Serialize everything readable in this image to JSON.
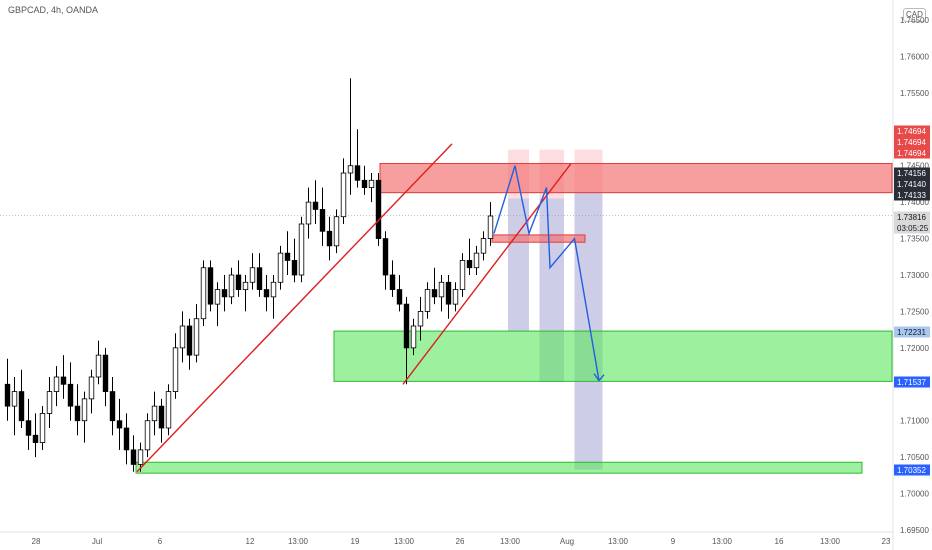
{
  "header": {
    "symbol": "GBPCAD, 4h, OANDA",
    "currency": "CAD"
  },
  "colors": {
    "up": "#089981",
    "down": "#000000",
    "trendline": "#e01e1e",
    "path": "#1f5fe0",
    "supply": "#f26b6b",
    "demand": "#5be65b",
    "badge_red": "#e84a4a",
    "badge_dark": "#2a2e39",
    "badge_gray": "#d9d9d9",
    "badge_lightblue": "#a8c8f0",
    "badge_blue": "#2962ff"
  },
  "chart_data": {
    "type": "candlestick",
    "title": "",
    "y_axis": {
      "side": "right",
      "range": [
        1.695,
        1.765
      ],
      "ticks": [
        "1.76500",
        "1.76000",
        "1.75500",
        "1.75000",
        "1.74500",
        "1.74000",
        "1.73500",
        "1.73000",
        "1.72500",
        "1.72000",
        "1.71500",
        "1.71000",
        "1.70500",
        "1.70000",
        "1.69500"
      ]
    },
    "x_axis": {
      "ticks": [
        "28",
        "Jul",
        "6",
        "12",
        "13:00",
        "19",
        "13:00",
        "26",
        "13:00",
        "Aug",
        "13:00",
        "9",
        "13:00",
        "16",
        "13:00",
        "23"
      ]
    },
    "price_badges": [
      {
        "label": "1.74694",
        "value": 1.74694,
        "style": "red"
      },
      {
        "label": "1.74694",
        "value": 1.74694,
        "style": "red"
      },
      {
        "label": "1.74694",
        "value": 1.74694,
        "style": "red"
      },
      {
        "label": "1.74156",
        "value": 1.74156,
        "style": "dark"
      },
      {
        "label": "1.74140",
        "value": 1.7414,
        "style": "dark"
      },
      {
        "label": "1.74133",
        "value": 1.74133,
        "style": "dark"
      },
      {
        "label": "1.73816",
        "value": 1.73816,
        "style": "gray"
      },
      {
        "label": "03:05:25",
        "value": 1.73816,
        "style": "gray"
      },
      {
        "label": "1.72231",
        "value": 1.72231,
        "style": "lightblue"
      },
      {
        "label": "1.71537",
        "value": 1.71537,
        "style": "blue"
      },
      {
        "label": "1.70352",
        "value": 1.70352,
        "style": "blue"
      }
    ],
    "current_price": 1.73816,
    "zones": [
      {
        "name": "supply-zone",
        "y_top": 1.7453,
        "y_bottom": 1.7413,
        "style": "supply"
      },
      {
        "name": "small-supply-zone",
        "y_top": 1.7355,
        "y_bottom": 1.7345,
        "style": "supply"
      },
      {
        "name": "demand-zone-upper",
        "y_top": 1.7223,
        "y_bottom": 1.7154,
        "style": "demand"
      },
      {
        "name": "demand-zone-lower",
        "y_top": 1.7043,
        "y_bottom": 1.7028,
        "style": "demand"
      }
    ],
    "candles": [
      {
        "o": 1.715,
        "h": 1.7185,
        "l": 1.71,
        "c": 1.712
      },
      {
        "o": 1.712,
        "h": 1.716,
        "l": 1.708,
        "c": 1.714
      },
      {
        "o": 1.714,
        "h": 1.717,
        "l": 1.709,
        "c": 1.71
      },
      {
        "o": 1.71,
        "h": 1.713,
        "l": 1.706,
        "c": 1.708
      },
      {
        "o": 1.708,
        "h": 1.711,
        "l": 1.705,
        "c": 1.707
      },
      {
        "o": 1.707,
        "h": 1.712,
        "l": 1.706,
        "c": 1.711
      },
      {
        "o": 1.711,
        "h": 1.716,
        "l": 1.709,
        "c": 1.714
      },
      {
        "o": 1.714,
        "h": 1.7175,
        "l": 1.712,
        "c": 1.716
      },
      {
        "o": 1.716,
        "h": 1.719,
        "l": 1.713,
        "c": 1.715
      },
      {
        "o": 1.715,
        "h": 1.718,
        "l": 1.71,
        "c": 1.712
      },
      {
        "o": 1.712,
        "h": 1.715,
        "l": 1.708,
        "c": 1.71
      },
      {
        "o": 1.71,
        "h": 1.714,
        "l": 1.707,
        "c": 1.713
      },
      {
        "o": 1.713,
        "h": 1.717,
        "l": 1.711,
        "c": 1.716
      },
      {
        "o": 1.716,
        "h": 1.721,
        "l": 1.715,
        "c": 1.719
      },
      {
        "o": 1.719,
        "h": 1.72,
        "l": 1.712,
        "c": 1.714
      },
      {
        "o": 1.714,
        "h": 1.716,
        "l": 1.708,
        "c": 1.71
      },
      {
        "o": 1.71,
        "h": 1.713,
        "l": 1.706,
        "c": 1.709
      },
      {
        "o": 1.709,
        "h": 1.711,
        "l": 1.704,
        "c": 1.706
      },
      {
        "o": 1.706,
        "h": 1.708,
        "l": 1.703,
        "c": 1.704
      },
      {
        "o": 1.704,
        "h": 1.707,
        "l": 1.703,
        "c": 1.706
      },
      {
        "o": 1.706,
        "h": 1.711,
        "l": 1.705,
        "c": 1.71
      },
      {
        "o": 1.71,
        "h": 1.714,
        "l": 1.708,
        "c": 1.712
      },
      {
        "o": 1.712,
        "h": 1.713,
        "l": 1.707,
        "c": 1.709
      },
      {
        "o": 1.709,
        "h": 1.715,
        "l": 1.708,
        "c": 1.714
      },
      {
        "o": 1.714,
        "h": 1.722,
        "l": 1.713,
        "c": 1.72
      },
      {
        "o": 1.72,
        "h": 1.725,
        "l": 1.718,
        "c": 1.723
      },
      {
        "o": 1.723,
        "h": 1.724,
        "l": 1.717,
        "c": 1.719
      },
      {
        "o": 1.719,
        "h": 1.726,
        "l": 1.718,
        "c": 1.724
      },
      {
        "o": 1.724,
        "h": 1.732,
        "l": 1.723,
        "c": 1.731
      },
      {
        "o": 1.731,
        "h": 1.732,
        "l": 1.725,
        "c": 1.726
      },
      {
        "o": 1.726,
        "h": 1.729,
        "l": 1.723,
        "c": 1.728
      },
      {
        "o": 1.728,
        "h": 1.73,
        "l": 1.725,
        "c": 1.727
      },
      {
        "o": 1.727,
        "h": 1.731,
        "l": 1.726,
        "c": 1.73
      },
      {
        "o": 1.73,
        "h": 1.732,
        "l": 1.727,
        "c": 1.728
      },
      {
        "o": 1.728,
        "h": 1.73,
        "l": 1.725,
        "c": 1.729
      },
      {
        "o": 1.729,
        "h": 1.733,
        "l": 1.728,
        "c": 1.731
      },
      {
        "o": 1.731,
        "h": 1.733,
        "l": 1.727,
        "c": 1.728
      },
      {
        "o": 1.728,
        "h": 1.73,
        "l": 1.725,
        "c": 1.727
      },
      {
        "o": 1.727,
        "h": 1.73,
        "l": 1.724,
        "c": 1.729
      },
      {
        "o": 1.729,
        "h": 1.734,
        "l": 1.728,
        "c": 1.733
      },
      {
        "o": 1.733,
        "h": 1.736,
        "l": 1.73,
        "c": 1.732
      },
      {
        "o": 1.732,
        "h": 1.735,
        "l": 1.729,
        "c": 1.73
      },
      {
        "o": 1.73,
        "h": 1.738,
        "l": 1.729,
        "c": 1.737
      },
      {
        "o": 1.737,
        "h": 1.742,
        "l": 1.735,
        "c": 1.74
      },
      {
        "o": 1.74,
        "h": 1.743,
        "l": 1.737,
        "c": 1.739
      },
      {
        "o": 1.739,
        "h": 1.742,
        "l": 1.734,
        "c": 1.736
      },
      {
        "o": 1.736,
        "h": 1.738,
        "l": 1.732,
        "c": 1.734
      },
      {
        "o": 1.734,
        "h": 1.739,
        "l": 1.733,
        "c": 1.738
      },
      {
        "o": 1.738,
        "h": 1.746,
        "l": 1.737,
        "c": 1.744
      },
      {
        "o": 1.744,
        "h": 1.757,
        "l": 1.741,
        "c": 1.745
      },
      {
        "o": 1.745,
        "h": 1.75,
        "l": 1.742,
        "c": 1.743
      },
      {
        "o": 1.743,
        "h": 1.745,
        "l": 1.741,
        "c": 1.742
      },
      {
        "o": 1.742,
        "h": 1.744,
        "l": 1.74,
        "c": 1.743
      },
      {
        "o": 1.743,
        "h": 1.744,
        "l": 1.734,
        "c": 1.735
      },
      {
        "o": 1.735,
        "h": 1.736,
        "l": 1.728,
        "c": 1.73
      },
      {
        "o": 1.73,
        "h": 1.732,
        "l": 1.727,
        "c": 1.728
      },
      {
        "o": 1.728,
        "h": 1.73,
        "l": 1.725,
        "c": 1.726
      },
      {
        "o": 1.726,
        "h": 1.727,
        "l": 1.715,
        "c": 1.72
      },
      {
        "o": 1.72,
        "h": 1.724,
        "l": 1.719,
        "c": 1.723
      },
      {
        "o": 1.723,
        "h": 1.727,
        "l": 1.721,
        "c": 1.725
      },
      {
        "o": 1.725,
        "h": 1.729,
        "l": 1.724,
        "c": 1.728
      },
      {
        "o": 1.728,
        "h": 1.731,
        "l": 1.726,
        "c": 1.727
      },
      {
        "o": 1.727,
        "h": 1.73,
        "l": 1.725,
        "c": 1.729
      },
      {
        "o": 1.729,
        "h": 1.73,
        "l": 1.724,
        "c": 1.726
      },
      {
        "o": 1.726,
        "h": 1.729,
        "l": 1.725,
        "c": 1.728
      },
      {
        "o": 1.728,
        "h": 1.733,
        "l": 1.727,
        "c": 1.732
      },
      {
        "o": 1.732,
        "h": 1.735,
        "l": 1.73,
        "c": 1.731
      },
      {
        "o": 1.731,
        "h": 1.734,
        "l": 1.73,
        "c": 1.733
      },
      {
        "o": 1.733,
        "h": 1.736,
        "l": 1.732,
        "c": 1.735
      },
      {
        "o": 1.735,
        "h": 1.74,
        "l": 1.734,
        "c": 1.7381
      }
    ],
    "trendlines": [
      {
        "name": "ascending-trendline-main",
        "from": {
          "bar": 19,
          "price": 1.703
        },
        "to": {
          "bar": 64,
          "price": 1.748
        }
      },
      {
        "name": "ascending-trendline-second",
        "from": {
          "bar": 57,
          "price": 1.715
        },
        "to": {
          "bar": 81,
          "price": 1.7453
        }
      }
    ],
    "projection_path": [
      {
        "bar": 70,
        "price": 1.7357
      },
      {
        "bar": 73,
        "price": 1.745
      },
      {
        "bar": 75,
        "price": 1.7357
      },
      {
        "bar": 77.5,
        "price": 1.742
      },
      {
        "bar": 78,
        "price": 1.731
      },
      {
        "bar": 81.5,
        "price": 1.735
      },
      {
        "bar": 85,
        "price": 1.7155
      }
    ],
    "highlight_columns": [
      {
        "bar_from": 72,
        "bar_to": 75,
        "top": 1.7472,
        "bottom": 1.7223,
        "style": "pink"
      },
      {
        "bar_from": 72,
        "bar_to": 75,
        "top": 1.7405,
        "bottom": 1.7223,
        "style": "lightblue"
      },
      {
        "bar_from": 76.5,
        "bar_to": 80,
        "top": 1.7472,
        "bottom": 1.7153,
        "style": "pink"
      },
      {
        "bar_from": 76.5,
        "bar_to": 80,
        "top": 1.7405,
        "bottom": 1.7153,
        "style": "lightblue"
      },
      {
        "bar_from": 81.5,
        "bar_to": 85.5,
        "top": 1.7472,
        "bottom": 1.7033,
        "style": "pink"
      },
      {
        "bar_from": 81.5,
        "bar_to": 85.5,
        "top": 1.7413,
        "bottom": 1.7033,
        "style": "lightblue"
      }
    ]
  }
}
